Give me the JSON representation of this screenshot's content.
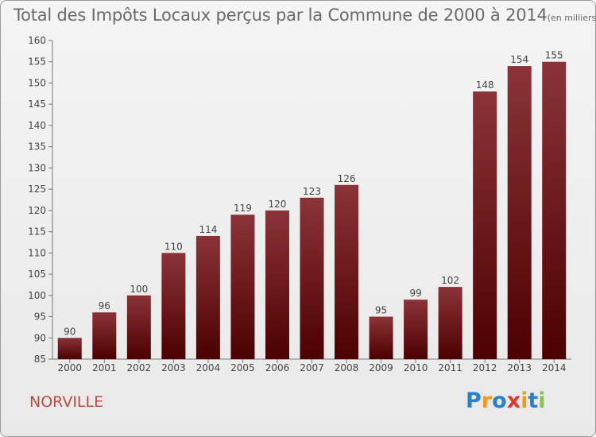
{
  "title": "Total des Impôts Locaux perçus par la Commune de 2000 à 2014",
  "subtitle": "(en milliers d'€)",
  "commune": "NORVILLE",
  "logo": {
    "text": "Proxiti",
    "colors": [
      "#2a7fd1",
      "#f39a1e",
      "#2a7fd1",
      "#e8322a",
      "#f39a1e",
      "#2a7fd1",
      "#8bc34a"
    ]
  },
  "colors": {
    "bar_top": "#8b3338",
    "bar_bottom": "#4c0000",
    "text": "#444444",
    "axis": "#777777"
  },
  "chart_data": {
    "type": "bar",
    "categories": [
      "2000",
      "2001",
      "2002",
      "2003",
      "2004",
      "2005",
      "2006",
      "2007",
      "2008",
      "2009",
      "2010",
      "2011",
      "2012",
      "2013",
      "2014"
    ],
    "values": [
      90,
      96,
      100,
      110,
      114,
      119,
      120,
      123,
      126,
      95,
      99,
      102,
      148,
      154,
      155
    ],
    "ylim": [
      85,
      160
    ],
    "yticks": [
      85,
      90,
      95,
      100,
      105,
      110,
      115,
      120,
      125,
      130,
      135,
      140,
      145,
      150,
      155,
      160
    ],
    "grid": false,
    "data_labels": true
  }
}
